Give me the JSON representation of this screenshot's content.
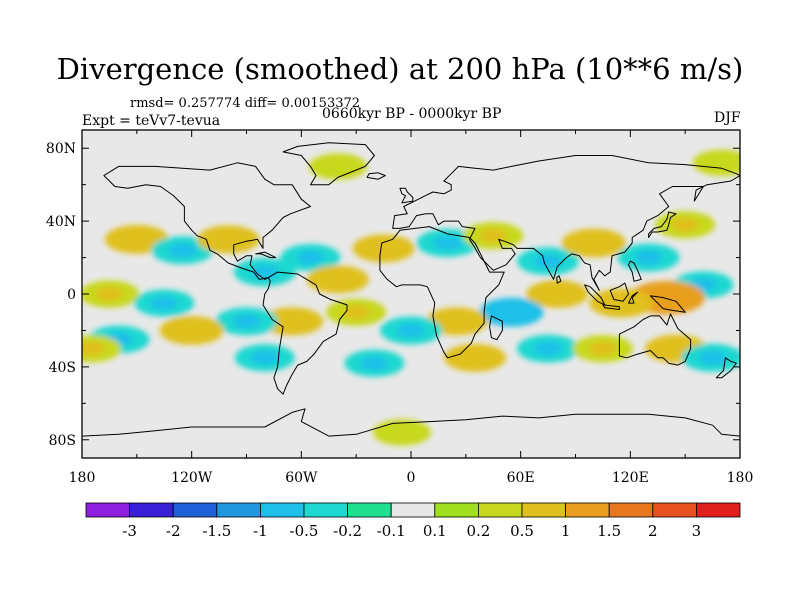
{
  "chart_data": {
    "type": "heatmap",
    "title": "Divergence (smoothed) at 200 hPa (10**6 m/s)",
    "stats_text": "rmsd= 0.257774  diff= 0.00153372",
    "experiment_text": "Expt = teVv7-tevua",
    "period_text": "0660kyr BP - 0000kyr BP",
    "season": "DJF",
    "xlim": [
      -180,
      180
    ],
    "ylim": [
      -90,
      90
    ],
    "x_ticks": [
      {
        "value": -180,
        "label": "180"
      },
      {
        "value": -120,
        "label": "120W"
      },
      {
        "value": -60,
        "label": "60W"
      },
      {
        "value": 0,
        "label": "0"
      },
      {
        "value": 60,
        "label": "60E"
      },
      {
        "value": 120,
        "label": "120E"
      },
      {
        "value": 180,
        "label": "180"
      }
    ],
    "y_ticks": [
      {
        "value": 80,
        "label": "80N"
      },
      {
        "value": 40,
        "label": "40N"
      },
      {
        "value": 0,
        "label": "0"
      },
      {
        "value": -40,
        "label": "40S"
      },
      {
        "value": -80,
        "label": "80S"
      }
    ],
    "colorbar": {
      "colors": [
        "#8f1fe0",
        "#3a1fd8",
        "#1f5fd8",
        "#1f98e0",
        "#1fc0e8",
        "#1fd8d0",
        "#1fe08f",
        "#e8e8e8",
        "#a0e01f",
        "#c8d81f",
        "#e0c01f",
        "#e89f1f",
        "#e8781f",
        "#e8501f",
        "#e01f1f"
      ],
      "labels": [
        "-3",
        "-2",
        "-1.5",
        "-1",
        "-0.5",
        "-0.2",
        "-0.1",
        "0.1",
        "0.2",
        "0.5",
        "1",
        "1.5",
        "2",
        "3"
      ]
    },
    "field_regions": [
      {
        "lon": -150,
        "lat": 30,
        "value": 0.6
      },
      {
        "lon": -125,
        "lat": 24,
        "value": -0.5
      },
      {
        "lon": -100,
        "lat": 30,
        "value": 0.5
      },
      {
        "lon": -165,
        "lat": 0,
        "value": 0.4
      },
      {
        "lon": -135,
        "lat": -5,
        "value": -0.4
      },
      {
        "lon": -80,
        "lat": 12,
        "value": -0.5
      },
      {
        "lon": -55,
        "lat": 20,
        "value": -0.4
      },
      {
        "lon": -40,
        "lat": 8,
        "value": 0.5
      },
      {
        "lon": -15,
        "lat": 25,
        "value": 0.5
      },
      {
        "lon": 20,
        "lat": 28,
        "value": -0.5
      },
      {
        "lon": 45,
        "lat": 32,
        "value": 0.4
      },
      {
        "lon": 75,
        "lat": 18,
        "value": -0.5
      },
      {
        "lon": 100,
        "lat": 28,
        "value": 0.6
      },
      {
        "lon": 130,
        "lat": 20,
        "value": -0.5
      },
      {
        "lon": 150,
        "lat": 38,
        "value": 0.4
      },
      {
        "lon": 160,
        "lat": 5,
        "value": -0.4
      },
      {
        "lon": 140,
        "lat": -2,
        "value": 1.2
      },
      {
        "lon": 115,
        "lat": -5,
        "value": 0.6
      },
      {
        "lon": 80,
        "lat": 0,
        "value": 0.5
      },
      {
        "lon": 55,
        "lat": -10,
        "value": -0.6
      },
      {
        "lon": 25,
        "lat": -15,
        "value": 0.5
      },
      {
        "lon": 0,
        "lat": -20,
        "value": -0.5
      },
      {
        "lon": -30,
        "lat": -10,
        "value": 0.4
      },
      {
        "lon": -65,
        "lat": -15,
        "value": 0.5
      },
      {
        "lon": -90,
        "lat": -15,
        "value": -0.5
      },
      {
        "lon": -120,
        "lat": -20,
        "value": 0.6
      },
      {
        "lon": -160,
        "lat": -25,
        "value": -0.5
      },
      {
        "lon": -175,
        "lat": -30,
        "value": 0.4
      },
      {
        "lon": -80,
        "lat": -35,
        "value": -0.4
      },
      {
        "lon": -20,
        "lat": -38,
        "value": -0.4
      },
      {
        "lon": 35,
        "lat": -35,
        "value": 0.5
      },
      {
        "lon": 75,
        "lat": -30,
        "value": -0.5
      },
      {
        "lon": 105,
        "lat": -30,
        "value": 0.4
      },
      {
        "lon": 145,
        "lat": -30,
        "value": 0.5
      },
      {
        "lon": 165,
        "lat": -35,
        "value": -0.5
      },
      {
        "lon": -40,
        "lat": 70,
        "value": 0.3
      },
      {
        "lon": 170,
        "lat": 72,
        "value": 0.3
      },
      {
        "lon": -5,
        "lat": -76,
        "value": 0.3
      }
    ]
  }
}
